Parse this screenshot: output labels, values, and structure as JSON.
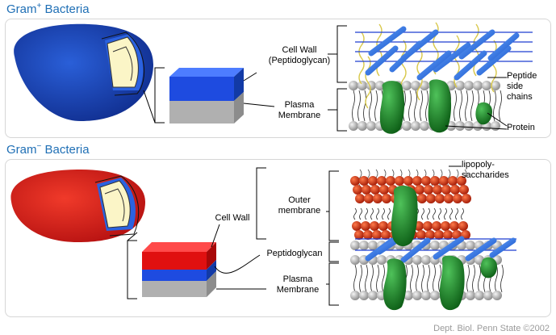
{
  "gram_positive": {
    "title": "Gram",
    "title_sign": "+",
    "title_rest": " Bacteria",
    "labels": {
      "cell_wall_line1": "Cell Wall",
      "cell_wall_line2": "(Peptidoglycan)",
      "plasma_line1": "Plasma",
      "plasma_line2": "Membrane",
      "peptide_line1": "Peptide",
      "peptide_line2": "side",
      "peptide_line3": "chains",
      "protein": "Protein"
    }
  },
  "gram_negative": {
    "title": "Gram",
    "title_sign": "−",
    "title_rest": " Bacteria",
    "labels": {
      "lps_line1": "lipopoly-",
      "lps_line2": "saccharides",
      "outer_line1": "Outer",
      "outer_line2": "membrane",
      "cell_wall": "Cell Wall",
      "peptidoglycan": "Peptidoglycan",
      "plasma_line1": "Plasma",
      "plasma_line2": "Membrane"
    }
  },
  "footer": "Dept. Biol. Penn State ©2002",
  "colors": {
    "title": "#1f6fb5",
    "gram_pos_cell": "#1a45b8",
    "gram_neg_cell": "#d81e1e",
    "peptidoglycan": "#1e4be0",
    "outer_membrane": "#e01010",
    "membrane": "#b0b0b0",
    "protein": "#1f8a2a",
    "lipid_head": "#c8c8c8",
    "lps_ball": "#c8320f"
  }
}
